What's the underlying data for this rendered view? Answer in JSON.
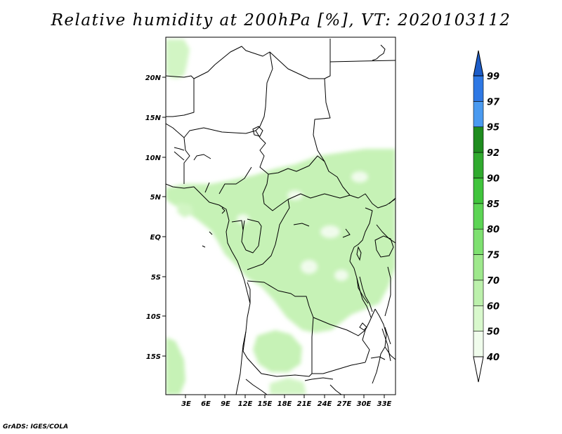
{
  "title": "Relative humidity at 200hPa [%], VT: 2020103112",
  "credit": "GrADS: IGES/COLA",
  "map": {
    "variable": "Relative humidity",
    "level": "200hPa",
    "unit": "%",
    "valid_time": "2020103112",
    "lat_labels": [
      "20N",
      "15N",
      "10N",
      "5N",
      "EQ",
      "5S",
      "10S",
      "15S"
    ],
    "lon_labels": [
      "3E",
      "6E",
      "9E",
      "12E",
      "15E",
      "18E",
      "21E",
      "24E",
      "27E",
      "30E",
      "33E"
    ]
  },
  "colorbar": {
    "levels": [
      "40",
      "50",
      "60",
      "70",
      "75",
      "80",
      "85",
      "90",
      "92",
      "95",
      "97",
      "99"
    ],
    "colors": [
      "#f0fcec",
      "#d8f8cc",
      "#bcf0ac",
      "#9ee88c",
      "#7ee070",
      "#5cd454",
      "#40c43c",
      "#30aa2e",
      "#1e8c1e",
      "#4a9af0",
      "#2e78e4",
      "#1c5cc8"
    ]
  }
}
